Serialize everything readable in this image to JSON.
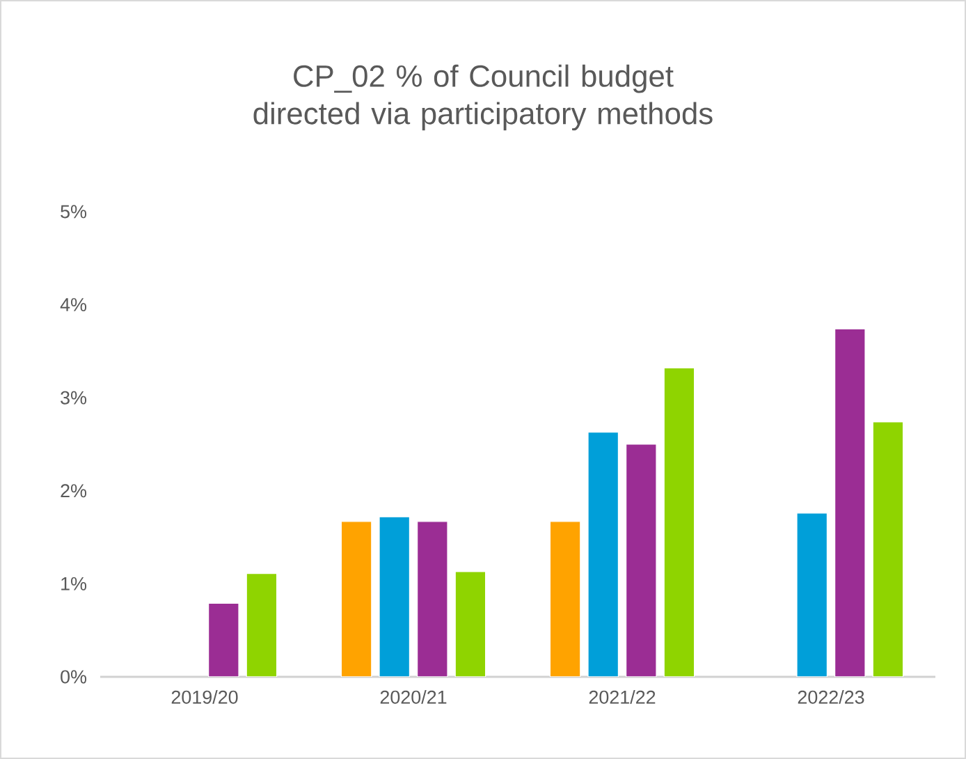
{
  "chart_data": {
    "type": "bar",
    "title": "CP_02 % of Council budget directed via participatory methods",
    "categories": [
      "2019/20",
      "2020/21",
      "2021/22",
      "2022/23"
    ],
    "series": [
      {
        "color": "#ffa300",
        "values": [
          null,
          1.67,
          1.67,
          null
        ]
      },
      {
        "color": "#009fd9",
        "values": [
          null,
          1.72,
          2.63,
          1.76
        ]
      },
      {
        "color": "#9b2d94",
        "values": [
          0.79,
          1.67,
          2.5,
          3.74
        ]
      },
      {
        "color": "#8fd400",
        "values": [
          1.11,
          1.13,
          3.32,
          2.74
        ]
      }
    ],
    "ylim": [
      0,
      5
    ],
    "yticks": [
      {
        "value": 0,
        "label": "0%"
      },
      {
        "value": 1,
        "label": "1%"
      },
      {
        "value": 2,
        "label": "2%"
      },
      {
        "value": 3,
        "label": "3%"
      },
      {
        "value": 4,
        "label": "4%"
      },
      {
        "value": 5,
        "label": "5%"
      }
    ]
  }
}
